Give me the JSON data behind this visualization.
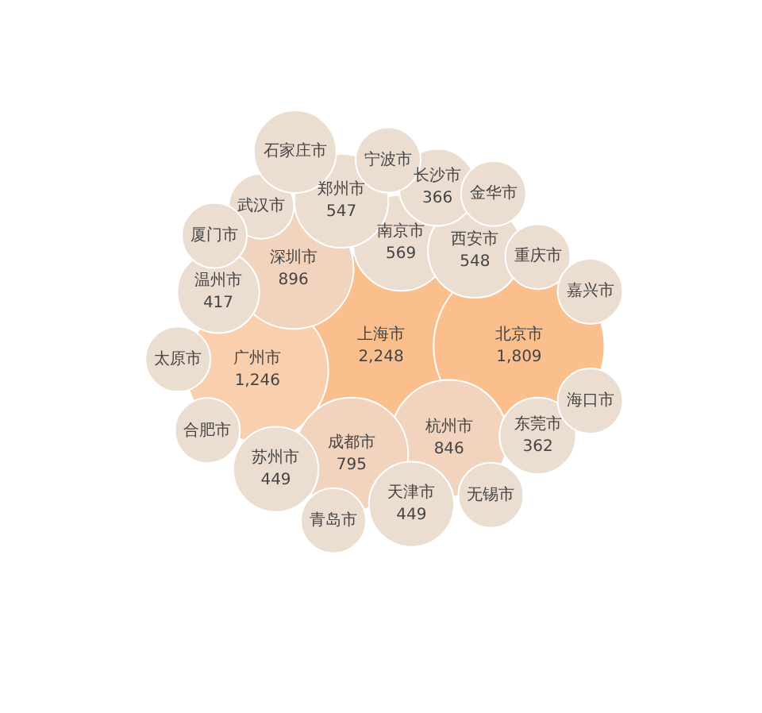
{
  "chart_data": {
    "type": "other",
    "categories": [
      "上海市",
      "北京市",
      "广州市",
      "深圳市",
      "杭州市",
      "成都市",
      "南京市",
      "西安市",
      "郑州市",
      "苏州市",
      "天津市",
      "温州市",
      "长沙市",
      "东莞市",
      "重庆市",
      "武汉市",
      "无锡市",
      "青岛市",
      "合肥市",
      "金华市",
      "太原市",
      "宁波市",
      "厦门市",
      "海口市",
      "嘉兴市",
      "石家庄市"
    ],
    "values": [
      2248,
      1809,
      1246,
      896,
      846,
      795,
      569,
      548,
      547,
      449,
      449,
      417,
      366,
      362,
      null,
      null,
      null,
      null,
      null,
      null,
      null,
      null,
      null,
      null,
      null,
      null
    ],
    "value_labels": [
      "2,248",
      "1,809",
      "1,246",
      "896",
      "846",
      "795",
      "569",
      "548",
      "547",
      "449",
      "449",
      "417",
      "366",
      "362",
      null,
      null,
      null,
      null,
      null,
      null,
      null,
      null,
      null,
      null,
      null,
      null
    ],
    "colors": [
      "#fbbf8e",
      "#fbbf8e",
      "#f9cfae",
      "#f2d3bd",
      "#f2d3bd",
      "#f2d3bd",
      "#ecddd1",
      "#ecddd1",
      "#ecddd1",
      "#ecddd1",
      "#ecddd1",
      "#ecddd1",
      "#ecddd1",
      "#ecddd1",
      "#ecddd1",
      "#ecddd1",
      "#ecddd1",
      "#ecddd1",
      "#ecddd1",
      "#ecddd1",
      "#ecddd1",
      "#ecddd1",
      "#ecddd1",
      "#ecddd1",
      "#ecddd1",
      "#ecddd1"
    ]
  }
}
